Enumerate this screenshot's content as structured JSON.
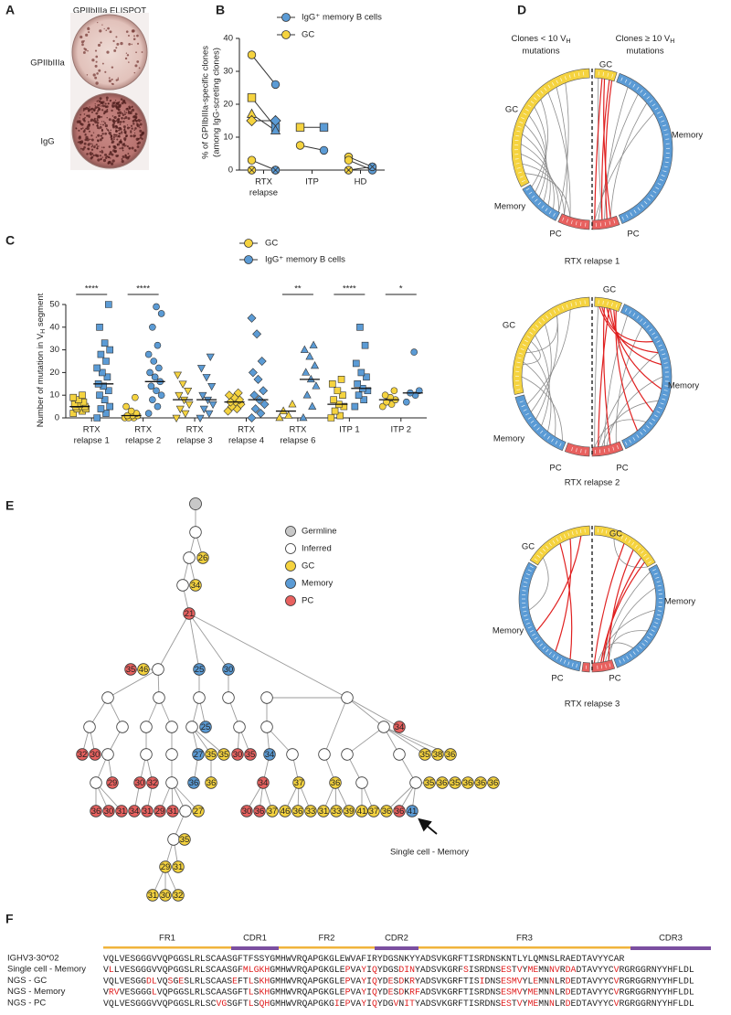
{
  "panel_labels": [
    "A",
    "B",
    "C",
    "D",
    "E",
    "F"
  ],
  "panel_a": {
    "title": "GPIIbIIIa ELISPOT",
    "wells": [
      "GPIIbIIIa",
      "IgG"
    ]
  },
  "chart_data": [
    {
      "type": "paired-dot",
      "ylabel": [
        "% of GPIIbIIIa-specific clones",
        "(among IgG-screting clones)"
      ],
      "categories": [
        [
          "RTX",
          "relapse"
        ],
        [
          "ITP"
        ],
        [
          "HD"
        ]
      ],
      "series": [
        {
          "name": "IgG⁺ memory B cells",
          "color": "#5b9bd5",
          "values": [
            [
              26,
              13,
              12,
              15,
              0,
              0
            ],
            [
              13,
              6
            ],
            [
              1,
              0,
              1
            ]
          ]
        },
        {
          "name": "GC",
          "color": "#f5d33f",
          "values": [
            [
              35,
              22,
              17,
              15,
              3,
              0
            ],
            [
              13,
              7.5
            ],
            [
              4,
              3,
              0
            ]
          ]
        }
      ],
      "markers": [
        [
          "circle",
          "square",
          "triangle",
          "diamond",
          "circle",
          "crossed-circle"
        ],
        [
          "square",
          "circle"
        ],
        [
          "circle",
          "circle",
          "crossed-circle"
        ]
      ],
      "ylim": [
        0,
        40
      ],
      "yticks": [
        0,
        10,
        20,
        30,
        40
      ],
      "legend": "top"
    },
    {
      "type": "dot-plot",
      "ylabel": {
        "text": "Number of mutation in V",
        "sub": "H",
        "after": " segment"
      },
      "categories": [
        [
          "RTX",
          "relapse 1"
        ],
        [
          "RTX",
          "relapse 2"
        ],
        [
          "RTX",
          "relapse 3"
        ],
        [
          "RTX",
          "relapse 4"
        ],
        [
          "RTX",
          "relapse 6"
        ],
        [
          "ITP 1"
        ],
        [
          "ITP 2"
        ]
      ],
      "series": [
        {
          "name": "GC",
          "color": "#f5d33f",
          "values": [
            [
              2,
              3,
              4,
              4,
              5,
              5,
              5,
              6,
              6,
              7,
              8,
              9,
              10
            ],
            [
              0,
              0,
              0,
              1,
              1,
              1,
              2,
              3,
              5,
              9
            ],
            [
              0,
              2,
              4,
              6,
              8,
              10,
              12,
              15,
              19
            ],
            [
              3,
              4,
              5,
              6,
              7,
              7,
              8,
              9,
              10,
              11
            ],
            [
              0,
              1,
              3,
              6
            ],
            [
              0,
              1,
              3,
              5,
              6,
              8,
              10,
              12,
              15,
              17
            ],
            [
              5,
              6,
              7,
              8,
              9,
              10,
              12
            ]
          ],
          "medians": [
            5,
            1,
            8,
            7,
            3,
            6,
            8
          ]
        },
        {
          "name": "IgG⁺ memory B cells",
          "color": "#5b9bd5",
          "values": [
            [
              0,
              2,
              4,
              5,
              8,
              10,
              12,
              14,
              15,
              18,
              20,
              22,
              25,
              28,
              30,
              33,
              40,
              50
            ],
            [
              2,
              5,
              8,
              10,
              12,
              14,
              16,
              18,
              20,
              22,
              25,
              28,
              32,
              40,
              46,
              49
            ],
            [
              0,
              2,
              4,
              6,
              8,
              10,
              14,
              18,
              22,
              27
            ],
            [
              0,
              2,
              4,
              6,
              8,
              10,
              12,
              17,
              20,
              25,
              37,
              44
            ],
            [
              0,
              5,
              10,
              14,
              17,
              20,
              23,
              27,
              30,
              32
            ],
            [
              5,
              8,
              10,
              12,
              13,
              15,
              18,
              20,
              24,
              32,
              40
            ],
            [
              7,
              10,
              11,
              12,
              29
            ]
          ],
          "medians": [
            15,
            16,
            8,
            8,
            17,
            13,
            11
          ]
        }
      ],
      "markers": [
        "square",
        "circle",
        "triangle-down",
        "diamond",
        "triangle",
        "square",
        "circle"
      ],
      "significance": [
        "****",
        "****",
        null,
        null,
        "**",
        "****",
        "*"
      ],
      "ylim": [
        0,
        50
      ],
      "yticks": [
        0,
        10,
        20,
        30,
        40,
        50
      ],
      "legend": "top"
    }
  ],
  "panel_d": {
    "headers": [
      {
        "text": "Clones < 10 V",
        "sub": "H",
        "line2": "mutations"
      },
      {
        "text": "Clones ≥ 10 V",
        "sub": "H",
        "line2": "mutations"
      }
    ],
    "colors": {
      "GC": "#f5d33f",
      "Memory": "#5b9bd5",
      "PC": "#e8615f",
      "link": "#8c8c8c",
      "highlight": "#e02020"
    },
    "diagrams": [
      {
        "title": "RTX relapse 1",
        "labels": [
          "GC",
          "GC",
          "Memory",
          "Memory",
          "PC",
          "PC"
        ]
      },
      {
        "title": "RTX relapse 2",
        "labels": [
          "GC",
          "GC",
          "Memory",
          "Memory",
          "PC",
          "PC"
        ]
      },
      {
        "title": "RTX relapse 3",
        "labels": [
          "GC",
          "GC",
          "Memory",
          "Memory",
          "PC",
          "PC"
        ]
      }
    ]
  },
  "panel_e": {
    "legend": [
      {
        "kind": "Germline",
        "color": "#c8c8c8"
      },
      {
        "kind": "Inferred",
        "color": "#ffffff"
      },
      {
        "kind": "GC",
        "color": "#f5d33f"
      },
      {
        "kind": "Memory",
        "color": "#5b9bd5"
      },
      {
        "kind": "PC",
        "color": "#e8615f"
      }
    ],
    "nodes": [
      {
        "kind": "Germline"
      },
      {
        "kind": "Inferred"
      },
      {
        "kind": "Inferred"
      },
      {
        "kind": "GC",
        "label": 26
      },
      {
        "kind": "Inferred"
      },
      {
        "kind": "GC",
        "label": 34
      },
      {
        "kind": "PC",
        "label": 21
      },
      {
        "kind": "Inferred"
      },
      {
        "kind": "PC",
        "label": 35
      },
      {
        "kind": "GC",
        "label": 46
      },
      {
        "kind": "Memory",
        "label": 25
      },
      {
        "kind": "Memory",
        "label": 30
      },
      {
        "kind": "Inferred"
      },
      {
        "kind": "Inferred"
      },
      {
        "kind": "Inferred"
      },
      {
        "kind": "Inferred"
      },
      {
        "kind": "Inferred"
      },
      {
        "kind": "Inferred"
      },
      {
        "kind": "Inferred"
      },
      {
        "kind": "Inferred"
      },
      {
        "kind": "Inferred"
      },
      {
        "kind": "Inferred"
      },
      {
        "kind": "Inferred"
      },
      {
        "kind": "Inferred"
      },
      {
        "kind": "Memory",
        "label": 25
      },
      {
        "kind": "Inferred"
      },
      {
        "kind": "Inferred"
      },
      {
        "kind": "PC",
        "label": 34
      },
      {
        "kind": "PC",
        "label": 32
      },
      {
        "kind": "PC",
        "label": 30
      },
      {
        "kind": "Inferred"
      },
      {
        "kind": "Inferred"
      },
      {
        "kind": "Inferred"
      },
      {
        "kind": "Memory",
        "label": 27
      },
      {
        "kind": "GC",
        "label": 35
      },
      {
        "kind": "GC",
        "label": 35
      },
      {
        "kind": "PC",
        "label": 30
      },
      {
        "kind": "PC",
        "label": 35
      },
      {
        "kind": "Memory",
        "label": 34
      },
      {
        "kind": "Inferred"
      },
      {
        "kind": "Inferred"
      },
      {
        "kind": "Inferred"
      },
      {
        "kind": "Inferred"
      },
      {
        "kind": "GC",
        "label": 35
      },
      {
        "kind": "GC",
        "label": 38
      },
      {
        "kind": "GC",
        "label": 36
      },
      {
        "kind": "Inferred"
      },
      {
        "kind": "PC",
        "label": 29
      },
      {
        "kind": "PC",
        "label": 30
      },
      {
        "kind": "PC",
        "label": 32
      },
      {
        "kind": "Inferred"
      },
      {
        "kind": "Memory",
        "label": 36
      },
      {
        "kind": "GC",
        "label": 36
      },
      {
        "kind": "PC",
        "label": 34
      },
      {
        "kind": "GC",
        "label": 37
      },
      {
        "kind": "GC",
        "label": 36
      },
      {
        "kind": "Inferred"
      },
      {
        "kind": "Inferred"
      },
      {
        "kind": "GC",
        "label": 35
      },
      {
        "kind": "GC",
        "label": 36
      },
      {
        "kind": "GC",
        "label": 35
      },
      {
        "kind": "GC",
        "label": 36
      },
      {
        "kind": "GC",
        "label": 36
      },
      {
        "kind": "GC",
        "label": 36
      },
      {
        "kind": "PC",
        "label": 36
      },
      {
        "kind": "PC",
        "label": 30
      },
      {
        "kind": "PC",
        "label": 31
      },
      {
        "kind": "PC",
        "label": 34
      },
      {
        "kind": "PC",
        "label": 31
      },
      {
        "kind": "PC",
        "label": 29
      },
      {
        "kind": "PC",
        "label": 31
      },
      {
        "kind": "Inferred"
      },
      {
        "kind": "GC",
        "label": 27
      },
      {
        "kind": "PC",
        "label": 30
      },
      {
        "kind": "PC",
        "label": 36
      },
      {
        "kind": "GC",
        "label": 37
      },
      {
        "kind": "GC",
        "label": 46
      },
      {
        "kind": "GC",
        "label": 36
      },
      {
        "kind": "GC",
        "label": 33
      },
      {
        "kind": "GC",
        "label": 31
      },
      {
        "kind": "GC",
        "label": 33
      },
      {
        "kind": "GC",
        "label": 39
      },
      {
        "kind": "GC",
        "label": 41
      },
      {
        "kind": "GC",
        "label": 37
      },
      {
        "kind": "GC",
        "label": 36
      },
      {
        "kind": "PC",
        "label": 36
      },
      {
        "kind": "Memory",
        "label": 41
      },
      {
        "kind": "Inferred"
      },
      {
        "kind": "GC",
        "label": 35
      },
      {
        "kind": "GC",
        "label": 29
      },
      {
        "kind": "GC",
        "label": 31
      },
      {
        "kind": "GC",
        "label": 31
      },
      {
        "kind": "GC",
        "label": 30
      },
      {
        "kind": "GC",
        "label": 32
      }
    ],
    "annotation": "Single cell - Memory"
  },
  "panel_f": {
    "regions": [
      {
        "name": "FR1",
        "type": "FR"
      },
      {
        "name": "CDR1",
        "type": "CDR"
      },
      {
        "name": "FR2",
        "type": "FR"
      },
      {
        "name": "CDR2",
        "type": "CDR"
      },
      {
        "name": "FR3",
        "type": "FR"
      },
      {
        "name": "CDR3",
        "type": "CDR"
      }
    ],
    "region_colors": {
      "FR": "#f0b43c",
      "CDR": "#7b4fa0"
    },
    "mutation_color": "#e02020",
    "rows": [
      {
        "label": "IGHV3-30*02",
        "sequence": "VQLVESGGGVVQPGGSLRLSCAASGFTFSSYGMHWVRQAPGKGLEWVAFIRYDGSNKYYADSVKGRFTISRDNSKNTLYLQMNSLRAEDTAVYYCAR"
      },
      {
        "label": "Single cell - Memory",
        "sequence": "VLLVESGGGVVQPGGSLRLSCAASGFMLGKHGMHWVRQAPGKGLEPVAYIQYDGSDINYADSVKGRFSISRDNSESTVYMEMNNVRDADTAVYYCVRGRGGRNYYHFLDL"
      },
      {
        "label": "NGS - GC",
        "sequence": "VQLVESGGDLVQSGESLRLSCAASEFTLSKHGMHWVRQAPGKGLEPVAYIQYDESDKRYADSVKGRFTISIDNSESMVYLEMNNLRDEDTAVYYCVRGRGGRNYYHFLDL"
      },
      {
        "label": "NGS - Memory",
        "sequence": "VRVVESGGGLVQPGGSLRLSCAASGFTLSKHGMHWVRQAPGKGLEPVAYIQYDESDKRFADSVKGRFTISRDNSESMVYMEMNNLRDEDTAVYYCVRGRGGRNYYHFLDL"
      },
      {
        "label": "NGS - PC",
        "sequence": "VQLVESGGGVVQPGGSLRLSCVGSGFTLSQHGMHWVRQAPGKGIEPVAYIQYDGVNITYADSVKGRFTISRDNSESTVYMEMNNLRDEDTAVYYCVRGRGGRNYYHFLDL"
      }
    ]
  }
}
